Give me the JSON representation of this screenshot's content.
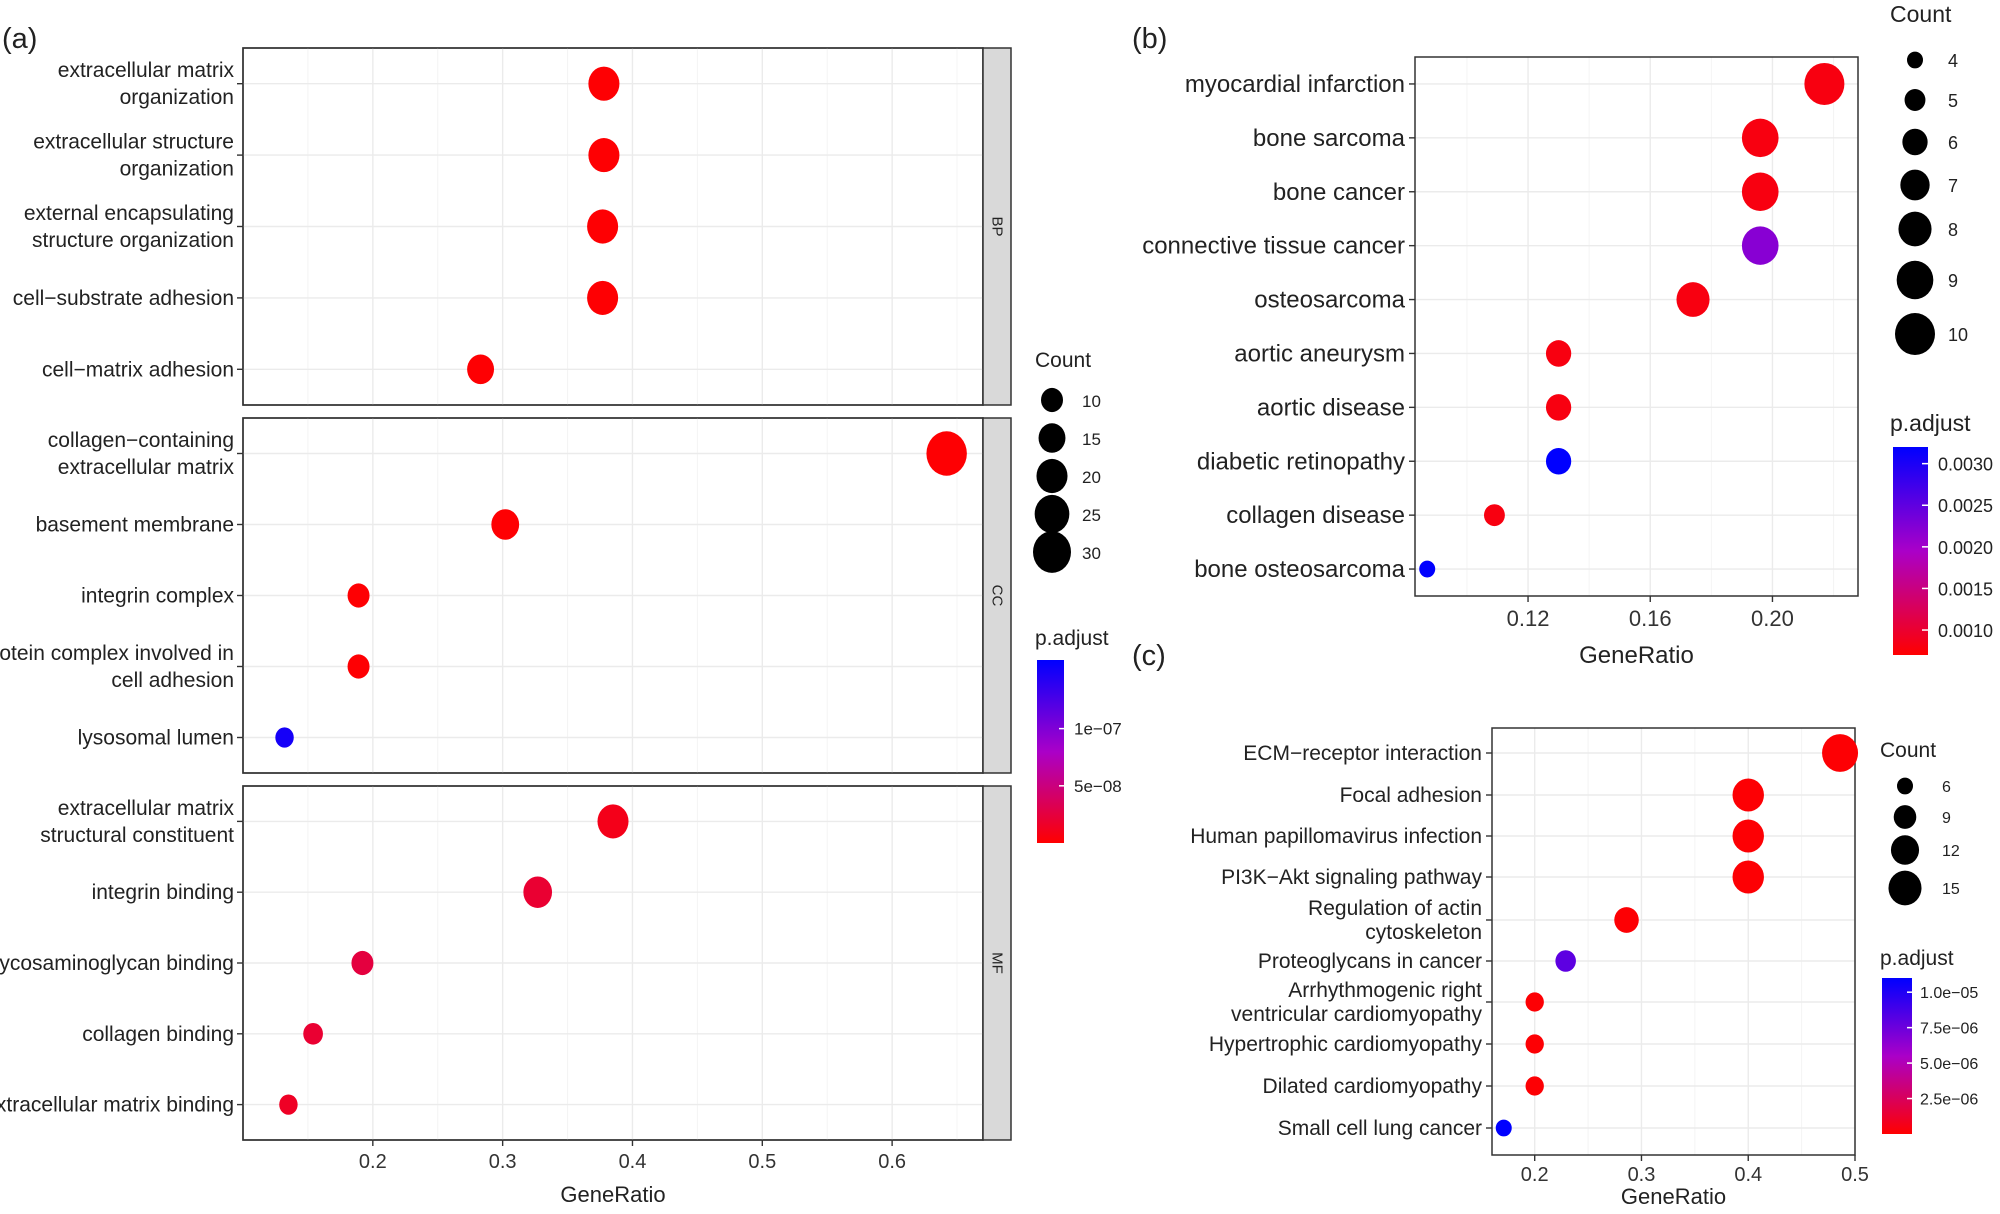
{
  "chart_data": [
    {
      "id": "a",
      "panel_label": "(a)",
      "type": "scatter",
      "subtype": "dot-plot",
      "xlabel": "GeneRatio",
      "xlim": [
        0.1,
        0.67
      ],
      "xticks": [
        0.2,
        0.3,
        0.4,
        0.5,
        0.6
      ],
      "xtick_labels": [
        "0.2",
        "0.3",
        "0.4",
        "0.5",
        "0.6"
      ],
      "facets": [
        {
          "strip": "BP",
          "terms": [
            "extracellular matrix organization",
            "extracellular structure organization",
            "external encapsulating structure organization",
            "cell−substrate adhesion",
            "cell−matrix adhesion"
          ],
          "term_lines": [
            [
              "extracellular matrix",
              "organization"
            ],
            [
              "extracellular structure",
              "organization"
            ],
            [
              "external encapsulating",
              "structure organization"
            ],
            [
              "cell−substrate adhesion"
            ],
            [
              "cell−matrix adhesion"
            ]
          ],
          "gene_ratio": [
            0.378,
            0.378,
            0.377,
            0.377,
            0.283
          ],
          "count": [
            20,
            20,
            20,
            20,
            15
          ],
          "p_adjust": [
            1e-09,
            1e-09,
            1e-09,
            1e-09,
            1e-09
          ]
        },
        {
          "strip": "CC",
          "terms": [
            "collagen−containing extracellular matrix",
            "basement membrane",
            "integrin complex",
            "protein complex involved in cell adhesion",
            "lysosomal lumen"
          ],
          "term_lines": [
            [
              "collagen−containing",
              "extracellular matrix"
            ],
            [
              "basement membrane"
            ],
            [
              "integrin complex"
            ],
            [
              "protein complex involved in",
              "cell adhesion"
            ],
            [
              "lysosomal lumen"
            ]
          ],
          "gene_ratio": [
            0.642,
            0.302,
            0.189,
            0.189,
            0.132
          ],
          "count": [
            34,
            16,
            10,
            10,
            7
          ],
          "p_adjust": [
            1e-09,
            1e-09,
            1e-09,
            1e-09,
            1.5e-07
          ]
        },
        {
          "strip": "MF",
          "terms": [
            "extracellular matrix structural constituent",
            "integrin binding",
            "glycosaminoglycan binding",
            "collagen binding",
            "extracellular matrix binding"
          ],
          "term_lines": [
            [
              "extracellular matrix",
              "structural constituent"
            ],
            [
              "integrin binding"
            ],
            [
              "glycosaminoglycan binding"
            ],
            [
              "collagen binding"
            ],
            [
              "extracellular matrix binding"
            ]
          ],
          "gene_ratio": [
            0.385,
            0.327,
            0.192,
            0.154,
            0.135
          ],
          "count": [
            20,
            17,
            10,
            8,
            7
          ],
          "p_adjust": [
            1e-08,
            2e-08,
            2.5e-08,
            2e-08,
            1.5e-08
          ]
        }
      ],
      "size_legend": {
        "title": "Count",
        "values": [
          10,
          15,
          20,
          25,
          30
        ],
        "labels": [
          "10",
          "15",
          "20",
          "25",
          "30"
        ]
      },
      "color_legend": {
        "title": "p.adjust",
        "range": [
          0,
          1.6e-07
        ],
        "ticks": [
          1e-07,
          5e-08
        ],
        "labels": [
          "1e−07",
          "5e−08"
        ],
        "low_color": "#ff0000",
        "high_color": "#0000ff"
      }
    },
    {
      "id": "b",
      "panel_label": "(b)",
      "type": "scatter",
      "subtype": "dot-plot",
      "xlabel": "GeneRatio",
      "xlim": [
        0.083,
        0.228
      ],
      "xticks": [
        0.12,
        0.16,
        0.2
      ],
      "xtick_labels": [
        "0.12",
        "0.16",
        "0.20"
      ],
      "terms": [
        "myocardial infarction",
        "bone sarcoma",
        "bone cancer",
        "connective tissue cancer",
        "osteosarcoma",
        "aortic aneurysm",
        "aortic disease",
        "diabetic retinopathy",
        "collagen disease",
        "bone osteosarcoma"
      ],
      "gene_ratio": [
        0.217,
        0.196,
        0.196,
        0.196,
        0.174,
        0.13,
        0.13,
        0.13,
        0.109,
        0.087
      ],
      "count": [
        10,
        9,
        9,
        9,
        8,
        6,
        6,
        6,
        5,
        4
      ],
      "p_adjust": [
        0.0008,
        0.0008,
        0.0008,
        0.0022,
        0.0008,
        0.0008,
        0.0008,
        0.0032,
        0.0008,
        0.0033
      ],
      "size_legend": {
        "title": "Count",
        "values": [
          4,
          5,
          6,
          7,
          8,
          9,
          10
        ],
        "labels": [
          "4",
          "5",
          "6",
          "7",
          "8",
          "9",
          "10"
        ]
      },
      "color_legend": {
        "title": "p.adjust",
        "range": [
          0.0007,
          0.0032
        ],
        "ticks": [
          0.003,
          0.0025,
          0.002,
          0.0015,
          0.001
        ],
        "labels": [
          "0.0030",
          "0.0025",
          "0.0020",
          "0.0015",
          "0.0010"
        ],
        "low_color": "#ff0000",
        "high_color": "#0000ff"
      }
    },
    {
      "id": "c",
      "panel_label": "(c)",
      "type": "scatter",
      "subtype": "dot-plot",
      "xlabel": "GeneRatio",
      "xlim": [
        0.16,
        0.5
      ],
      "xticks": [
        0.2,
        0.3,
        0.4,
        0.5
      ],
      "xtick_labels": [
        "0.2",
        "0.3",
        "0.4",
        "0.5"
      ],
      "terms": [
        "ECM−receptor interaction",
        "Focal adhesion",
        "Human papillomavirus infection",
        "PI3K−Akt signaling pathway",
        "Regulation of actin cytoskeleton",
        "Proteoglycans in cancer",
        "Arrhythmogenic right ventricular cardiomyopathy",
        "Hypertrophic cardiomyopathy",
        "Dilated cardiomyopathy",
        "Small cell lung cancer"
      ],
      "term_lines": [
        [
          "ECM−receptor interaction"
        ],
        [
          "Focal adhesion"
        ],
        [
          "Human papillomavirus infection"
        ],
        [
          "PI3K−Akt signaling pathway"
        ],
        [
          "Regulation of actin",
          "cytoskeleton"
        ],
        [
          "Proteoglycans in cancer"
        ],
        [
          "Arrhythmogenic right",
          "ventricular cardiomyopathy"
        ],
        [
          "Hypertrophic cardiomyopathy"
        ],
        [
          "Dilated cardiomyopathy"
        ],
        [
          "Small cell lung cancer"
        ]
      ],
      "gene_ratio": [
        0.486,
        0.4,
        0.4,
        0.4,
        0.286,
        0.229,
        0.2,
        0.2,
        0.2,
        0.171
      ],
      "count": [
        17,
        14,
        14,
        14,
        10,
        8,
        7,
        7,
        7,
        6
      ],
      "p_adjust": [
        1e-07,
        1e-07,
        1e-07,
        1e-07,
        1e-07,
        8e-06,
        1e-07,
        1e-07,
        1e-07,
        1.1e-05
      ],
      "size_legend": {
        "title": "Count",
        "values": [
          6,
          9,
          12,
          15
        ],
        "labels": [
          "6",
          "9",
          "12",
          "15"
        ]
      },
      "color_legend": {
        "title": "p.adjust",
        "range": [
          0,
          1.1e-05
        ],
        "ticks": [
          1e-05,
          7.5e-06,
          5e-06,
          2.5e-06
        ],
        "labels": [
          "1.0e−05",
          "7.5e−06",
          "5.0e−06",
          "2.5e−06"
        ],
        "low_color": "#ff0000",
        "high_color": "#0000ff"
      }
    }
  ]
}
